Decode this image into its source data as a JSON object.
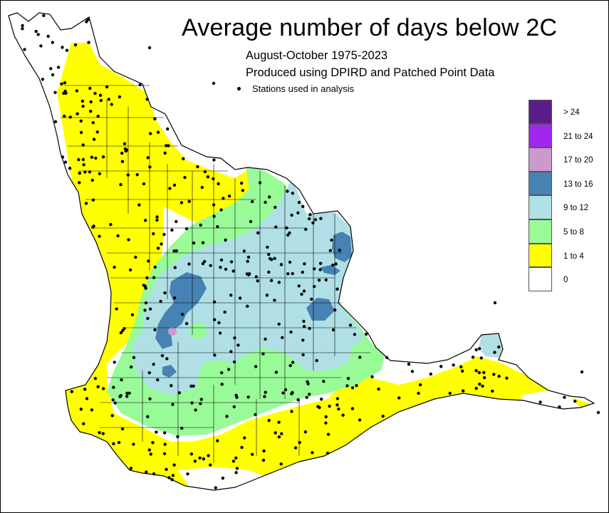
{
  "title": "Average number of days below 2C",
  "subtitle_period": "August-October 1975-2023",
  "subtitle_source": "Produced using DPIRD and Patched Point Data",
  "station_legend_label": "Stations used in analysis",
  "legend": [
    {
      "label": "> 24",
      "color": "#5a1e8c"
    },
    {
      "label": "21 to 24",
      "color": "#a126f0"
    },
    {
      "label": "17 to 20",
      "color": "#cc99cc"
    },
    {
      "label": "13 to 16",
      "color": "#4682b4"
    },
    {
      "label": "9 to 12",
      "color": "#b0e0e6"
    },
    {
      "label": "5 to 8",
      "color": "#98fb98"
    },
    {
      "label": "1 to 4",
      "color": "#ffff00"
    },
    {
      "label": "0",
      "color": "#ffffff"
    }
  ]
}
